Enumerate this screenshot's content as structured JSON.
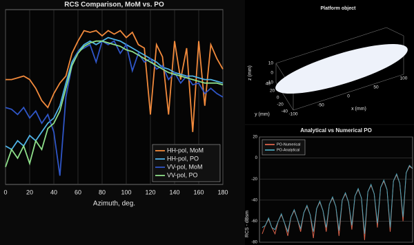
{
  "chart_data": [
    {
      "type": "line",
      "title": "RCS Comparison, MoM vs. PO",
      "xlabel": "Azimuth, deg.",
      "x": [
        0,
        5,
        10,
        15,
        20,
        25,
        30,
        35,
        40,
        45,
        50,
        55,
        60,
        65,
        70,
        75,
        80,
        85,
        90,
        95,
        100,
        105,
        110,
        115,
        120,
        125,
        130,
        135,
        140,
        145,
        150,
        155,
        160,
        165,
        170,
        175,
        180
      ],
      "xlim": [
        0,
        180
      ],
      "xticks": [
        0,
        20,
        40,
        60,
        80,
        100,
        120,
        140,
        160,
        180
      ],
      "ylim": [
        0,
        100
      ],
      "grid": true,
      "legend": "lower right",
      "series": [
        {
          "name": "HH-pol, MoM",
          "color": "#f28a3c",
          "values": [
            60,
            60,
            61,
            62,
            60,
            55,
            48,
            44,
            52,
            58,
            62,
            75,
            82,
            88,
            87,
            88,
            85,
            88,
            86,
            88,
            84,
            87,
            80,
            78,
            40,
            80,
            73,
            40,
            82,
            60,
            78,
            30,
            82,
            45,
            80,
            72,
            66
          ]
        },
        {
          "name": "HH-pol, PO",
          "color": "#4fb3e8",
          "values": [
            22,
            20,
            25,
            22,
            28,
            25,
            30,
            35,
            38,
            45,
            58,
            70,
            76,
            80,
            82,
            80,
            82,
            84,
            83,
            82,
            80,
            78,
            76,
            74,
            72,
            70,
            67,
            66,
            64,
            63,
            62,
            62,
            61,
            60,
            60,
            59,
            58
          ]
        },
        {
          "name": "VV-pol, MoM",
          "color": "#2f56c8",
          "values": [
            44,
            43,
            40,
            44,
            38,
            42,
            35,
            40,
            30,
            5,
            50,
            68,
            76,
            78,
            80,
            70,
            82,
            80,
            82,
            75,
            80,
            65,
            75,
            70,
            72,
            66,
            68,
            60,
            64,
            58,
            62,
            57,
            58,
            52,
            55,
            52,
            50
          ]
        },
        {
          "name": "VV-pol, PO",
          "color": "#8fe08a",
          "values": [
            10,
            20,
            15,
            22,
            12,
            25,
            20,
            32,
            35,
            42,
            55,
            68,
            75,
            79,
            81,
            82,
            82,
            81,
            80,
            79,
            77,
            76,
            74,
            72,
            70,
            68,
            66,
            64,
            63,
            62,
            61,
            60,
            59,
            58,
            58,
            58,
            57
          ]
        }
      ]
    },
    {
      "type": "scatter3d",
      "title": "Platform object",
      "xlabel": "x (mm)",
      "ylabel": "y (mm)",
      "zlabel": "z (mm)",
      "xlim": [
        -100,
        100
      ],
      "xticks": [
        -100,
        -50,
        0,
        50,
        100
      ],
      "ylim": [
        -40,
        40
      ],
      "yticks": [
        -40,
        -20,
        0,
        20,
        40
      ],
      "zlim": [
        -10,
        10
      ],
      "zticks": [
        -10,
        0,
        10
      ],
      "color": "#eef2fa"
    },
    {
      "type": "line",
      "title": "Analytical vs Numerical PO",
      "ylabel": "RCS - dBsm",
      "ylim": [
        -80,
        20
      ],
      "yticks": [
        -80,
        -60,
        -40,
        -20,
        0,
        20
      ],
      "grid": true,
      "legend": "upper left",
      "series": [
        {
          "name": "PO-Numerical",
          "color": "#d9624a",
          "values": [
            -72,
            -64,
            -58,
            -66,
            -72,
            -60,
            -54,
            -62,
            -74,
            -56,
            -50,
            -58,
            -70,
            -52,
            -46,
            -54,
            -76,
            -48,
            -42,
            -50,
            -70,
            -44,
            -38,
            -46,
            -74,
            -40,
            -34,
            -42,
            -68,
            -36,
            -30,
            -38,
            -78,
            -32,
            -26,
            -34,
            -66,
            -28,
            -22,
            -30,
            -70,
            -22,
            -16,
            -24,
            -60,
            -14,
            -8,
            -10
          ]
        },
        {
          "name": "PO-Analytical",
          "color": "#4aa3b8",
          "values": [
            -66,
            -64,
            -57,
            -66,
            -68,
            -60,
            -53,
            -62,
            -70,
            -56,
            -49,
            -58,
            -67,
            -52,
            -45,
            -54,
            -70,
            -48,
            -41,
            -50,
            -66,
            -44,
            -37,
            -46,
            -69,
            -40,
            -33,
            -42,
            -64,
            -36,
            -29,
            -38,
            -72,
            -32,
            -25,
            -34,
            -62,
            -28,
            -21,
            -30,
            -66,
            -22,
            -15,
            -24,
            -56,
            -14,
            -7,
            -10
          ]
        }
      ]
    }
  ]
}
